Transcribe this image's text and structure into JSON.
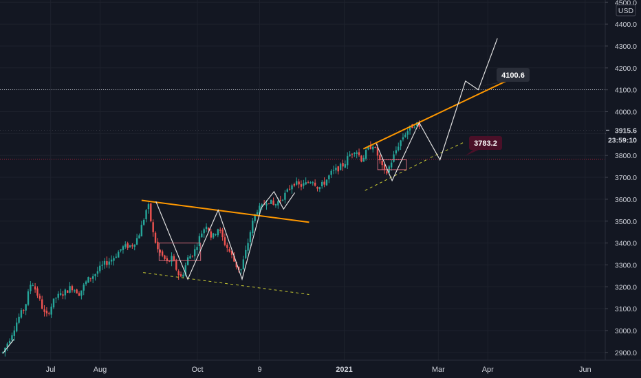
{
  "chart_data": {
    "type": "candlestick",
    "currency": "USD",
    "ylim": [
      2870,
      4510
    ],
    "y_ticks": [
      2900,
      3000,
      3100,
      3200,
      3300,
      3400,
      3500,
      3600,
      3700,
      3800,
      3900,
      4000,
      4100,
      4200,
      4300,
      4400,
      4500
    ],
    "y_tick_labels": [
      "2900.0",
      "3000.0",
      "3100.0",
      "3200.0",
      "3300.0",
      "3400.0",
      "3500.0",
      "3600.0",
      "3700.0",
      "3800.0",
      "3900.0",
      "4000.0",
      "4100.0",
      "4200.0",
      "4300.0",
      "4400.0",
      "4500.0"
    ],
    "x_labels": [
      {
        "text": "Jul",
        "day": 30,
        "bold": false
      },
      {
        "text": "Aug",
        "day": 61,
        "bold": false
      },
      {
        "text": "Oct",
        "day": 122,
        "bold": false
      },
      {
        "text": "9",
        "day": 161,
        "bold": false
      },
      {
        "text": "2021",
        "day": 214,
        "bold": true
      },
      {
        "text": "Mar",
        "day": 273,
        "bold": false
      },
      {
        "text": "Apr",
        "day": 304,
        "bold": false
      },
      {
        "text": "Jun",
        "day": 365,
        "bold": false
      }
    ],
    "last_price": 3915.6,
    "countdown": "23:59:10",
    "horizontal_levels": [
      {
        "value": 4100.6,
        "label": "4100.6",
        "color": "#b2b5be"
      },
      {
        "value": 3783.2,
        "label": "3783.2",
        "color": "#b2243f"
      }
    ],
    "series_anchors": [
      [
        0,
        2900
      ],
      [
        5,
        2975
      ],
      [
        10,
        3060
      ],
      [
        14,
        3110
      ],
      [
        18,
        3230
      ],
      [
        22,
        3160
      ],
      [
        27,
        3060
      ],
      [
        33,
        3150
      ],
      [
        38,
        3170
      ],
      [
        43,
        3200
      ],
      [
        48,
        3170
      ],
      [
        53,
        3230
      ],
      [
        58,
        3260
      ],
      [
        63,
        3300
      ],
      [
        69,
        3330
      ],
      [
        75,
        3380
      ],
      [
        81,
        3390
      ],
      [
        85,
        3430
      ],
      [
        88,
        3500
      ],
      [
        91,
        3580
      ],
      [
        94,
        3450
      ],
      [
        97,
        3370
      ],
      [
        100,
        3340
      ],
      [
        103,
        3310
      ],
      [
        106,
        3330
      ],
      [
        110,
        3260
      ],
      [
        112,
        3240
      ],
      [
        116,
        3330
      ],
      [
        120,
        3360
      ],
      [
        124,
        3440
      ],
      [
        128,
        3490
      ],
      [
        131,
        3420
      ],
      [
        135,
        3470
      ],
      [
        139,
        3400
      ],
      [
        143,
        3350
      ],
      [
        146,
        3300
      ],
      [
        149,
        3270
      ],
      [
        153,
        3380
      ],
      [
        156,
        3480
      ],
      [
        159,
        3550
      ],
      [
        162,
        3560
      ],
      [
        166,
        3600
      ],
      [
        170,
        3570
      ],
      [
        174,
        3600
      ],
      [
        178,
        3630
      ],
      [
        182,
        3680
      ],
      [
        186,
        3660
      ],
      [
        190,
        3670
      ],
      [
        194,
        3690
      ],
      [
        198,
        3650
      ],
      [
        202,
        3680
      ],
      [
        206,
        3720
      ],
      [
        210,
        3740
      ],
      [
        214,
        3760
      ],
      [
        217,
        3800
      ],
      [
        221,
        3830
      ],
      [
        225,
        3780
      ],
      [
        229,
        3830
      ],
      [
        232,
        3850
      ],
      [
        235,
        3800
      ],
      [
        238,
        3740
      ],
      [
        240,
        3710
      ],
      [
        244,
        3780
      ],
      [
        248,
        3850
      ],
      [
        252,
        3900
      ],
      [
        256,
        3930
      ],
      [
        259,
        3950
      ],
      [
        262,
        3916
      ]
    ],
    "annotations": {
      "trendlines": [
        {
          "color": "#ff9800",
          "width": 2,
          "dash": false,
          "points": [
            [
              87,
              3595
            ],
            [
              192,
              3495
            ]
          ]
        },
        {
          "color": "#ff9800",
          "width": 2,
          "dash": false,
          "points": [
            [
              226,
              3830
            ],
            [
              317,
              4145
            ]
          ]
        },
        {
          "color": "#c6c832",
          "width": 1,
          "dash": true,
          "points": [
            [
              88,
              3265
            ],
            [
              192,
              3165
            ]
          ]
        },
        {
          "color": "#c6c832",
          "width": 1,
          "dash": true,
          "points": [
            [
              227,
              3640
            ],
            [
              267,
              3785
            ]
          ]
        },
        {
          "color": "#c6c832",
          "width": 1,
          "dash": true,
          "points": [
            [
              268,
              3790
            ],
            [
              289,
              3860
            ]
          ]
        }
      ],
      "zigzags": [
        {
          "color": "#e0e0e0",
          "dash": false,
          "points": [
            [
              0,
              2895
            ],
            [
              7,
              2960
            ]
          ]
        },
        {
          "color": "#e0e0e0",
          "dash": false,
          "points": [
            [
              96,
              3590
            ],
            [
              116,
              3235
            ],
            [
              135,
              3550
            ],
            [
              150,
              3235
            ],
            [
              162,
              3560
            ],
            [
              170,
              3635
            ],
            [
              176,
              3555
            ],
            [
              183,
              3630
            ]
          ]
        },
        {
          "color": "#e0e0e0",
          "dash": false,
          "points": [
            [
              234,
              3855
            ],
            [
              244,
              3685
            ],
            [
              261,
              3950
            ],
            [
              274,
              3780
            ],
            [
              290,
              4140
            ],
            [
              298,
              4100
            ],
            [
              310,
              4335
            ]
          ]
        }
      ],
      "boxes": [
        {
          "color": "#d06a78",
          "x": [
            98,
            124
          ],
          "y": [
            3320,
            3400
          ]
        },
        {
          "color": "#d06a78",
          "x": [
            235,
            253
          ],
          "y": [
            3735,
            3780
          ]
        }
      ]
    },
    "colors": {
      "up": "#26a69a",
      "down": "#ef5350",
      "background": "#131722",
      "grid": "#1e222d",
      "axis_text": "#d1d4dc"
    }
  }
}
